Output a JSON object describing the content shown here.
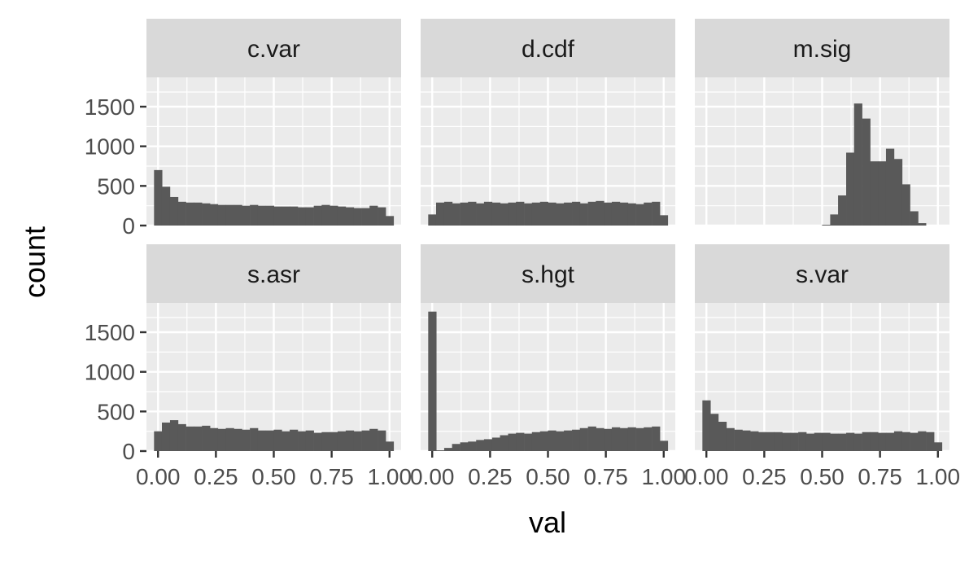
{
  "chart_data": {
    "type": "histogram-facets",
    "xlabel": "val",
    "ylabel": "count",
    "xlim": [
      -0.05,
      1.05
    ],
    "ylim": [
      0,
      1870
    ],
    "x_ticks": [
      0,
      0.25,
      0.5,
      0.75,
      1.0
    ],
    "x_tick_labels": [
      "0.00",
      "0.25",
      "0.50",
      "0.75",
      "1.00"
    ],
    "y_ticks": [
      0,
      500,
      1000,
      1500
    ],
    "y_tick_labels": [
      "0",
      "500",
      "1000",
      "1500"
    ],
    "grid": true,
    "bins": 30,
    "bin_width": 0.0345,
    "bin_centers": [
      0.0,
      0.034,
      0.069,
      0.103,
      0.138,
      0.172,
      0.207,
      0.241,
      0.276,
      0.31,
      0.345,
      0.379,
      0.414,
      0.448,
      0.483,
      0.517,
      0.552,
      0.586,
      0.621,
      0.655,
      0.69,
      0.724,
      0.759,
      0.793,
      0.828,
      0.862,
      0.897,
      0.931,
      0.966,
      1.0
    ],
    "colors": {
      "bar": "#595959",
      "panel": "#ebebeb",
      "strip": "#d9d9d9",
      "grid": "#ffffff"
    },
    "facets": [
      {
        "name": "c.var",
        "values": [
          700,
          490,
          360,
          300,
          290,
          290,
          280,
          270,
          260,
          260,
          260,
          250,
          260,
          250,
          250,
          240,
          240,
          240,
          230,
          230,
          250,
          260,
          250,
          240,
          230,
          220,
          220,
          250,
          230,
          120
        ]
      },
      {
        "name": "d.cdf",
        "values": [
          140,
          290,
          300,
          280,
          290,
          300,
          280,
          300,
          290,
          280,
          290,
          300,
          280,
          290,
          300,
          290,
          280,
          290,
          300,
          280,
          300,
          310,
          290,
          300,
          290,
          280,
          270,
          290,
          300,
          130
        ]
      },
      {
        "name": "m.sig",
        "values": [
          0,
          0,
          0,
          0,
          0,
          0,
          0,
          0,
          0,
          0,
          0,
          0,
          0,
          0,
          0,
          10,
          140,
          380,
          920,
          1540,
          1350,
          810,
          810,
          970,
          840,
          520,
          180,
          30,
          0,
          0
        ]
      },
      {
        "name": "s.asr",
        "values": [
          250,
          360,
          390,
          340,
          310,
          310,
          320,
          290,
          280,
          290,
          280,
          270,
          290,
          260,
          260,
          270,
          250,
          270,
          250,
          260,
          230,
          240,
          240,
          250,
          260,
          250,
          260,
          280,
          260,
          120
        ]
      },
      {
        "name": "s.hgt",
        "values": [
          1760,
          10,
          40,
          90,
          110,
          120,
          140,
          150,
          170,
          200,
          220,
          230,
          220,
          240,
          250,
          260,
          250,
          260,
          270,
          290,
          310,
          290,
          280,
          300,
          290,
          300,
          290,
          300,
          310,
          130
        ]
      },
      {
        "name": "s.var",
        "values": [
          640,
          470,
          370,
          290,
          270,
          260,
          250,
          240,
          240,
          240,
          230,
          230,
          240,
          220,
          230,
          230,
          220,
          220,
          230,
          220,
          240,
          240,
          230,
          230,
          250,
          240,
          230,
          250,
          240,
          110
        ]
      }
    ]
  }
}
